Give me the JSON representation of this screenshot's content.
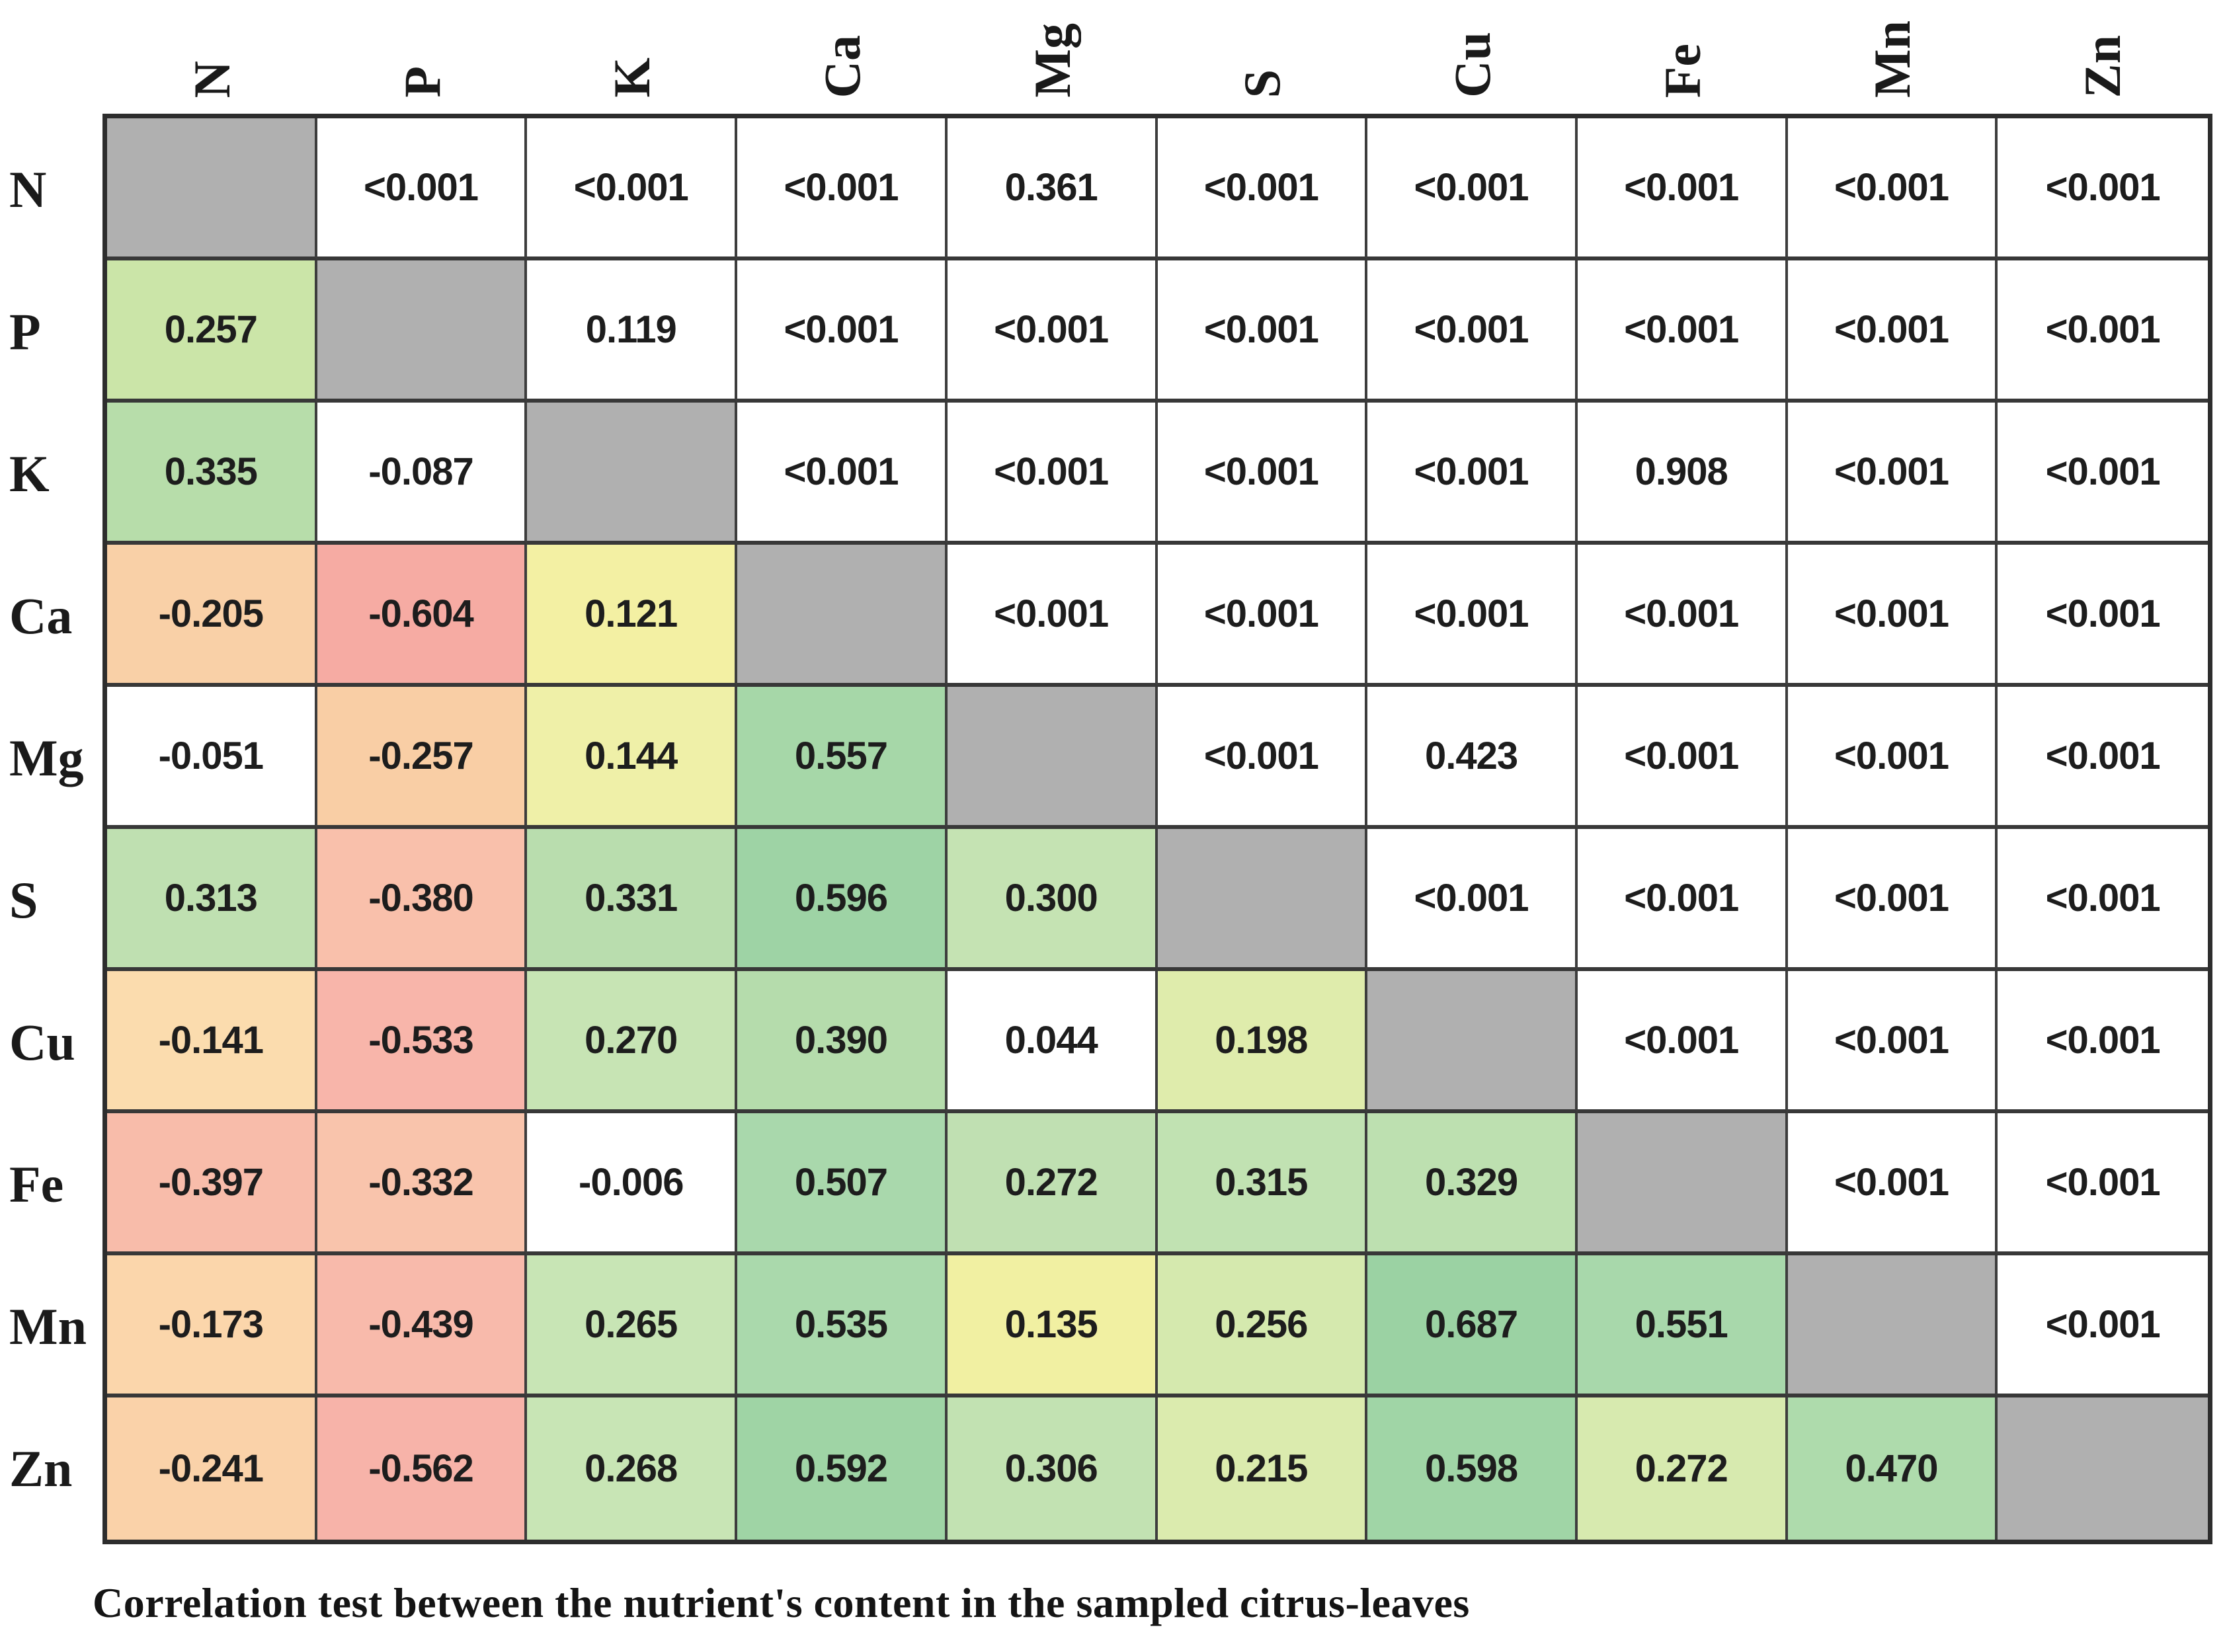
{
  "figure": {
    "caption": "Correlation test between the nutrient's content in the sampled citrus-leaves"
  },
  "chart_data": {
    "type": "heatmap",
    "title": "Correlation test between the nutrient's content in the sampled citrus-leaves",
    "variables": [
      "N",
      "P",
      "K",
      "Ca",
      "Mg",
      "S",
      "Cu",
      "Fe",
      "Mn",
      "Zn"
    ],
    "lower_triangle": "correlation coefficients (cells colored red-yellow-green by value)",
    "upper_triangle": "p-values (white cells)",
    "diagonal": "empty gray cells",
    "diagonal_color": "#b0b0b0",
    "rows": [
      {
        "label": "N",
        "cells": [
          {
            "v": "",
            "bg": "#b0b0b0",
            "diag": true
          },
          {
            "v": "<0.001",
            "bg": "#ffffff"
          },
          {
            "v": "<0.001",
            "bg": "#ffffff"
          },
          {
            "v": "<0.001",
            "bg": "#ffffff"
          },
          {
            "v": "0.361",
            "bg": "#ffffff"
          },
          {
            "v": "<0.001",
            "bg": "#ffffff"
          },
          {
            "v": "<0.001",
            "bg": "#ffffff"
          },
          {
            "v": "<0.001",
            "bg": "#ffffff"
          },
          {
            "v": "<0.001",
            "bg": "#ffffff"
          },
          {
            "v": "<0.001",
            "bg": "#ffffff"
          }
        ]
      },
      {
        "label": "P",
        "cells": [
          {
            "v": "0.257",
            "bg": "#cbe5a8"
          },
          {
            "v": "",
            "bg": "#b0b0b0",
            "diag": true
          },
          {
            "v": "0.119",
            "bg": "#ffffff"
          },
          {
            "v": "<0.001",
            "bg": "#ffffff"
          },
          {
            "v": "<0.001",
            "bg": "#ffffff"
          },
          {
            "v": "<0.001",
            "bg": "#ffffff"
          },
          {
            "v": "<0.001",
            "bg": "#ffffff"
          },
          {
            "v": "<0.001",
            "bg": "#ffffff"
          },
          {
            "v": "<0.001",
            "bg": "#ffffff"
          },
          {
            "v": "<0.001",
            "bg": "#ffffff"
          }
        ]
      },
      {
        "label": "K",
        "cells": [
          {
            "v": "0.335",
            "bg": "#b7ddaa"
          },
          {
            "v": "-0.087",
            "bg": "#ffffff"
          },
          {
            "v": "",
            "bg": "#b0b0b0",
            "diag": true
          },
          {
            "v": "<0.001",
            "bg": "#ffffff"
          },
          {
            "v": "<0.001",
            "bg": "#ffffff"
          },
          {
            "v": "<0.001",
            "bg": "#ffffff"
          },
          {
            "v": "<0.001",
            "bg": "#ffffff"
          },
          {
            "v": "0.908",
            "bg": "#ffffff"
          },
          {
            "v": "<0.001",
            "bg": "#ffffff"
          },
          {
            "v": "<0.001",
            "bg": "#ffffff"
          }
        ]
      },
      {
        "label": "Ca",
        "cells": [
          {
            "v": "-0.205",
            "bg": "#f9d0a7"
          },
          {
            "v": "-0.604",
            "bg": "#f6aba3"
          },
          {
            "v": "0.121",
            "bg": "#f3f0a3"
          },
          {
            "v": "",
            "bg": "#b0b0b0",
            "diag": true
          },
          {
            "v": "<0.001",
            "bg": "#ffffff"
          },
          {
            "v": "<0.001",
            "bg": "#ffffff"
          },
          {
            "v": "<0.001",
            "bg": "#ffffff"
          },
          {
            "v": "<0.001",
            "bg": "#ffffff"
          },
          {
            "v": "<0.001",
            "bg": "#ffffff"
          },
          {
            "v": "<0.001",
            "bg": "#ffffff"
          }
        ]
      },
      {
        "label": "Mg",
        "cells": [
          {
            "v": "-0.051",
            "bg": "#ffffff"
          },
          {
            "v": "-0.257",
            "bg": "#f9cea5"
          },
          {
            "v": "0.144",
            "bg": "#eff0a8"
          },
          {
            "v": "0.557",
            "bg": "#a6d7a8"
          },
          {
            "v": "",
            "bg": "#b0b0b0",
            "diag": true
          },
          {
            "v": "<0.001",
            "bg": "#ffffff"
          },
          {
            "v": "0.423",
            "bg": "#ffffff"
          },
          {
            "v": "<0.001",
            "bg": "#ffffff"
          },
          {
            "v": "<0.001",
            "bg": "#ffffff"
          },
          {
            "v": "<0.001",
            "bg": "#ffffff"
          }
        ]
      },
      {
        "label": "S",
        "cells": [
          {
            "v": "0.313",
            "bg": "#bfe0b1"
          },
          {
            "v": "-0.380",
            "bg": "#f9c0ab"
          },
          {
            "v": "0.331",
            "bg": "#b9ddae"
          },
          {
            "v": "0.596",
            "bg": "#9ed3a5"
          },
          {
            "v": "0.300",
            "bg": "#c5e3b3"
          },
          {
            "v": "",
            "bg": "#b0b0b0",
            "diag": true
          },
          {
            "v": "<0.001",
            "bg": "#ffffff"
          },
          {
            "v": "<0.001",
            "bg": "#ffffff"
          },
          {
            "v": "<0.001",
            "bg": "#ffffff"
          },
          {
            "v": "<0.001",
            "bg": "#ffffff"
          }
        ]
      },
      {
        "label": "Cu",
        "cells": [
          {
            "v": "-0.141",
            "bg": "#fbdcae"
          },
          {
            "v": "-0.533",
            "bg": "#f8b5aa"
          },
          {
            "v": "0.270",
            "bg": "#c7e4b4"
          },
          {
            "v": "0.390",
            "bg": "#b5dcac"
          },
          {
            "v": "0.044",
            "bg": "#ffffff"
          },
          {
            "v": "0.198",
            "bg": "#dfecac"
          },
          {
            "v": "",
            "bg": "#b0b0b0",
            "diag": true
          },
          {
            "v": "<0.001",
            "bg": "#ffffff"
          },
          {
            "v": "<0.001",
            "bg": "#ffffff"
          },
          {
            "v": "<0.001",
            "bg": "#ffffff"
          }
        ]
      },
      {
        "label": "Fe",
        "cells": [
          {
            "v": "-0.397",
            "bg": "#f8bcaa"
          },
          {
            "v": "-0.332",
            "bg": "#f9c4ac"
          },
          {
            "v": "-0.006",
            "bg": "#ffffff"
          },
          {
            "v": "0.507",
            "bg": "#a9d8ac"
          },
          {
            "v": "0.272",
            "bg": "#c0e0b2"
          },
          {
            "v": "0.315",
            "bg": "#c1e2b2"
          },
          {
            "v": "0.329",
            "bg": "#bde0b0"
          },
          {
            "v": "",
            "bg": "#b0b0b0",
            "diag": true
          },
          {
            "v": "<0.001",
            "bg": "#ffffff"
          },
          {
            "v": "<0.001",
            "bg": "#ffffff"
          }
        ]
      },
      {
        "label": "Mn",
        "cells": [
          {
            "v": "-0.173",
            "bg": "#fbd6ab"
          },
          {
            "v": "-0.439",
            "bg": "#f8baab"
          },
          {
            "v": "0.265",
            "bg": "#c8e5b5"
          },
          {
            "v": "0.535",
            "bg": "#aad9ac"
          },
          {
            "v": "0.135",
            "bg": "#f1f0a2"
          },
          {
            "v": "0.256",
            "bg": "#d5e9ae"
          },
          {
            "v": "0.687",
            "bg": "#9bd2a3"
          },
          {
            "v": "0.551",
            "bg": "#a8d8ab"
          },
          {
            "v": "",
            "bg": "#b0b0b0",
            "diag": true
          },
          {
            "v": "<0.001",
            "bg": "#ffffff"
          }
        ]
      },
      {
        "label": "Zn",
        "cells": [
          {
            "v": "-0.241",
            "bg": "#fad2a9"
          },
          {
            "v": "-0.562",
            "bg": "#f7b3a9"
          },
          {
            "v": "0.268",
            "bg": "#c8e5b5"
          },
          {
            "v": "0.592",
            "bg": "#9fd4a5"
          },
          {
            "v": "0.306",
            "bg": "#c2e2b2"
          },
          {
            "v": "0.215",
            "bg": "#dbebae"
          },
          {
            "v": "0.598",
            "bg": "#a0d5a6"
          },
          {
            "v": "0.272",
            "bg": "#d7eaaf"
          },
          {
            "v": "0.470",
            "bg": "#aedbac"
          },
          {
            "v": "",
            "bg": "#b0b0b0",
            "diag": true
          }
        ]
      }
    ]
  }
}
